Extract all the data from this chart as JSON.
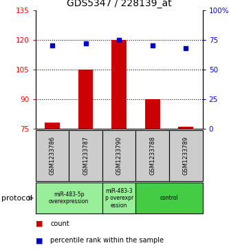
{
  "title": "GDS5347 / 228139_at",
  "samples": [
    "GSM1233786",
    "GSM1233787",
    "GSM1233790",
    "GSM1233788",
    "GSM1233789"
  ],
  "counts": [
    78,
    105,
    120,
    90,
    76
  ],
  "percentiles": [
    70,
    72,
    75,
    70,
    68
  ],
  "ylim_left": [
    75,
    135
  ],
  "ylim_right": [
    0,
    100
  ],
  "yticks_left": [
    75,
    90,
    105,
    120,
    135
  ],
  "yticks_right": [
    0,
    25,
    50,
    75,
    100
  ],
  "bar_color": "#cc0000",
  "dot_color": "#0000cc",
  "protocol_groups": [
    {
      "label": "miR-483-5p\noverexpression",
      "start": 0,
      "end": 2,
      "color": "#99ee99"
    },
    {
      "label": "miR-483-3\np overexpr\nession",
      "start": 2,
      "end": 3,
      "color": "#99ee99"
    },
    {
      "label": "control",
      "start": 3,
      "end": 5,
      "color": "#44cc44"
    }
  ],
  "protocol_label": "protocol",
  "legend_count_label": "count",
  "legend_percentile_label": "percentile rank within the sample",
  "label_area_color": "#cccccc",
  "bar_width": 0.45
}
